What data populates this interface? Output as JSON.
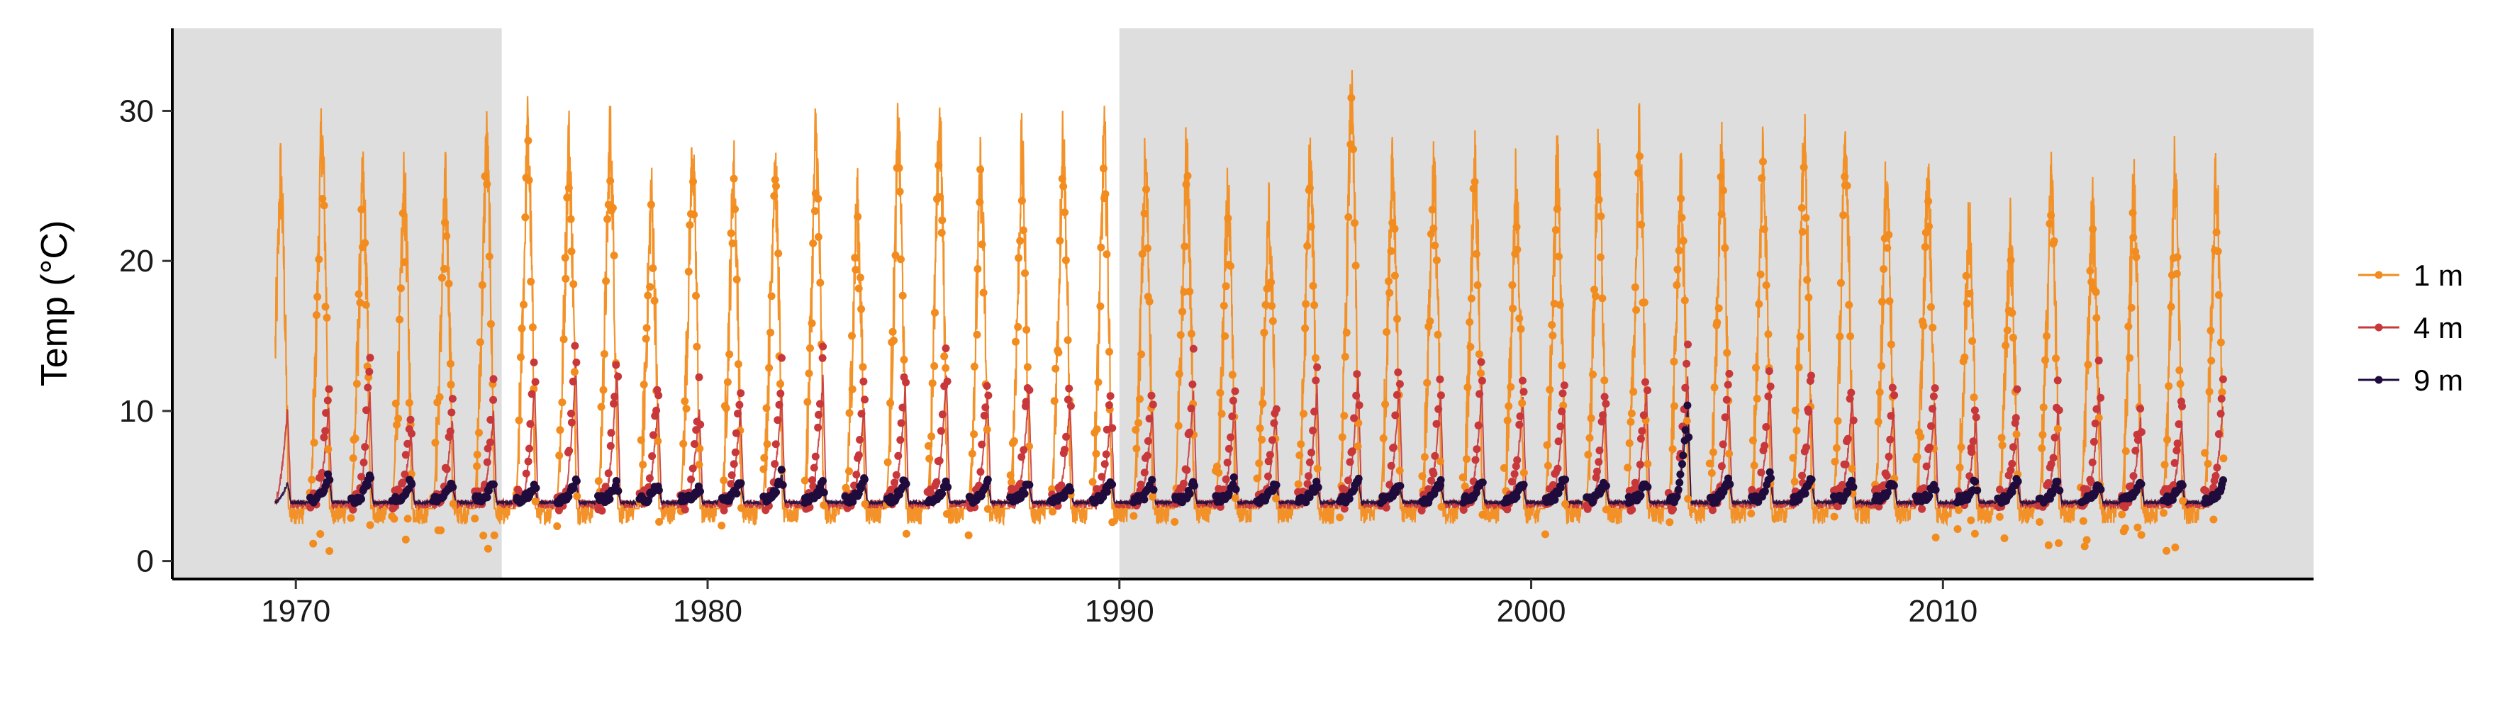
{
  "chart_data": {
    "type": "line",
    "title": "",
    "xlabel": "",
    "ylabel": "Temp (°C)",
    "xlim": [
      1967.0,
      2019.0
    ],
    "ylim": [
      -1.2,
      35.5
    ],
    "x_ticks": [
      1970,
      1980,
      1990,
      2000,
      2010
    ],
    "y_ticks": [
      0,
      10,
      20,
      30
    ],
    "x_tick_labels": [
      "1970",
      "1980",
      "1990",
      "2000",
      "2010"
    ],
    "y_tick_labels": [
      "0",
      "10",
      "20",
      "30"
    ],
    "grid": false,
    "legend_position": "right",
    "shaded_periods": [
      {
        "start": 1967.0,
        "end": 1975.0,
        "color": "#dedede"
      },
      {
        "start": 1990.0,
        "end": 2019.0,
        "color": "#dedede"
      }
    ],
    "simulation_span": [
      1969.5,
      2016.8
    ],
    "series": [
      {
        "name": "1 m",
        "color": "#f28c1e",
        "annual_peaks": [
          [
            1970,
            31.2
          ],
          [
            1971,
            27.5
          ],
          [
            1972,
            27.0
          ],
          [
            1973,
            27.0
          ],
          [
            1974,
            30.5
          ],
          [
            1975,
            31.0
          ],
          [
            1976,
            30.5
          ],
          [
            1977,
            31.0
          ],
          [
            1978,
            26.5
          ],
          [
            1979,
            29.5
          ],
          [
            1980,
            28.5
          ],
          [
            1981,
            29.0
          ],
          [
            1982,
            31.0
          ],
          [
            1983,
            26.0
          ],
          [
            1984,
            31.0
          ],
          [
            1985,
            32.0
          ],
          [
            1986,
            28.0
          ],
          [
            1987,
            29.5
          ],
          [
            1988,
            30.5
          ],
          [
            1989,
            30.5
          ],
          [
            1990,
            28.5
          ],
          [
            1991,
            29.0
          ],
          [
            1992,
            26.0
          ],
          [
            1993,
            25.0
          ],
          [
            1994,
            29.0
          ],
          [
            1995,
            33.8
          ],
          [
            1996,
            29.5
          ],
          [
            1997,
            28.5
          ],
          [
            1998,
            29.0
          ],
          [
            1999,
            27.0
          ],
          [
            2000,
            29.0
          ],
          [
            2001,
            29.5
          ],
          [
            2002,
            30.5
          ],
          [
            2003,
            27.5
          ],
          [
            2004,
            30.0
          ],
          [
            2005,
            29.5
          ],
          [
            2006,
            30.5
          ],
          [
            2007,
            30.5
          ],
          [
            2008,
            28.0
          ],
          [
            2009,
            28.0
          ],
          [
            2010,
            24.5
          ],
          [
            2011,
            23.5
          ],
          [
            2012,
            27.5
          ],
          [
            2013,
            25.5
          ],
          [
            2014,
            27.0
          ],
          [
            2015,
            28.0
          ],
          [
            2016,
            28.5
          ]
        ],
        "winter_min": 2.0
      },
      {
        "name": "4 m",
        "color": "#c8373a",
        "annual_peaks": [
          [
            1970,
            12.0
          ],
          [
            1971,
            13.5
          ],
          [
            1972,
            10.0
          ],
          [
            1973,
            11.0
          ],
          [
            1974,
            11.5
          ],
          [
            1975,
            14.0
          ],
          [
            1976,
            15.5
          ],
          [
            1977,
            15.0
          ],
          [
            1978,
            12.5
          ],
          [
            1979,
            12.0
          ],
          [
            1980,
            12.0
          ],
          [
            1981,
            13.0
          ],
          [
            1982,
            14.5
          ],
          [
            1983,
            12.0
          ],
          [
            1984,
            13.5
          ],
          [
            1985,
            14.5
          ],
          [
            1986,
            13.0
          ],
          [
            1987,
            13.5
          ],
          [
            1988,
            12.5
          ],
          [
            1989,
            12.0
          ],
          [
            1990,
            12.0
          ],
          [
            1991,
            13.5
          ],
          [
            1992,
            12.5
          ],
          [
            1993,
            11.5
          ],
          [
            1994,
            13.5
          ],
          [
            1995,
            14.5
          ],
          [
            1996,
            14.0
          ],
          [
            1997,
            13.0
          ],
          [
            1998,
            13.5
          ],
          [
            1999,
            13.0
          ],
          [
            2000,
            12.5
          ],
          [
            2001,
            12.0
          ],
          [
            2002,
            13.5
          ],
          [
            2003,
            14.5
          ],
          [
            2004,
            13.0
          ],
          [
            2005,
            13.5
          ],
          [
            2006,
            13.0
          ],
          [
            2007,
            13.0
          ],
          [
            2008,
            12.0
          ],
          [
            2009,
            12.5
          ],
          [
            2010,
            11.0
          ],
          [
            2011,
            11.0
          ],
          [
            2012,
            12.0
          ],
          [
            2013,
            13.5
          ],
          [
            2014,
            11.0
          ],
          [
            2015,
            11.0
          ],
          [
            2016,
            12.0
          ]
        ],
        "winter_min": 3.8
      },
      {
        "name": "9 m",
        "color": "#1f0c3d",
        "annual_peaks": [
          [
            1970,
            5.8
          ],
          [
            1971,
            5.8
          ],
          [
            1972,
            5.5
          ],
          [
            1973,
            5.2
          ],
          [
            1974,
            5.3
          ],
          [
            1975,
            5.0
          ],
          [
            1976,
            5.5
          ],
          [
            1977,
            5.2
          ],
          [
            1978,
            5.2
          ],
          [
            1979,
            5.0
          ],
          [
            1980,
            5.3
          ],
          [
            1981,
            6.0
          ],
          [
            1982,
            5.2
          ],
          [
            1983,
            5.5
          ],
          [
            1984,
            5.5
          ],
          [
            1985,
            5.3
          ],
          [
            1986,
            5.4
          ],
          [
            1987,
            5.3
          ],
          [
            1988,
            5.0
          ],
          [
            1989,
            5.5
          ],
          [
            1990,
            5.3
          ],
          [
            1991,
            5.2
          ],
          [
            1992,
            5.5
          ],
          [
            1993,
            5.3
          ],
          [
            1994,
            5.2
          ],
          [
            1995,
            5.5
          ],
          [
            1996,
            5.2
          ],
          [
            1997,
            5.3
          ],
          [
            1998,
            5.5
          ],
          [
            1999,
            5.2
          ],
          [
            2000,
            5.8
          ],
          [
            2001,
            5.3
          ],
          [
            2002,
            5.4
          ],
          [
            2003,
            10.5
          ],
          [
            2004,
            5.8
          ],
          [
            2005,
            5.8
          ],
          [
            2006,
            5.6
          ],
          [
            2007,
            5.5
          ],
          [
            2008,
            5.5
          ],
          [
            2009,
            5.2
          ],
          [
            2010,
            5.5
          ],
          [
            2011,
            5.5
          ],
          [
            2012,
            5.5
          ],
          [
            2013,
            5.2
          ],
          [
            2014,
            5.4
          ],
          [
            2015,
            5.2
          ],
          [
            2016,
            5.2
          ]
        ],
        "winter_min": 3.9
      }
    ]
  }
}
